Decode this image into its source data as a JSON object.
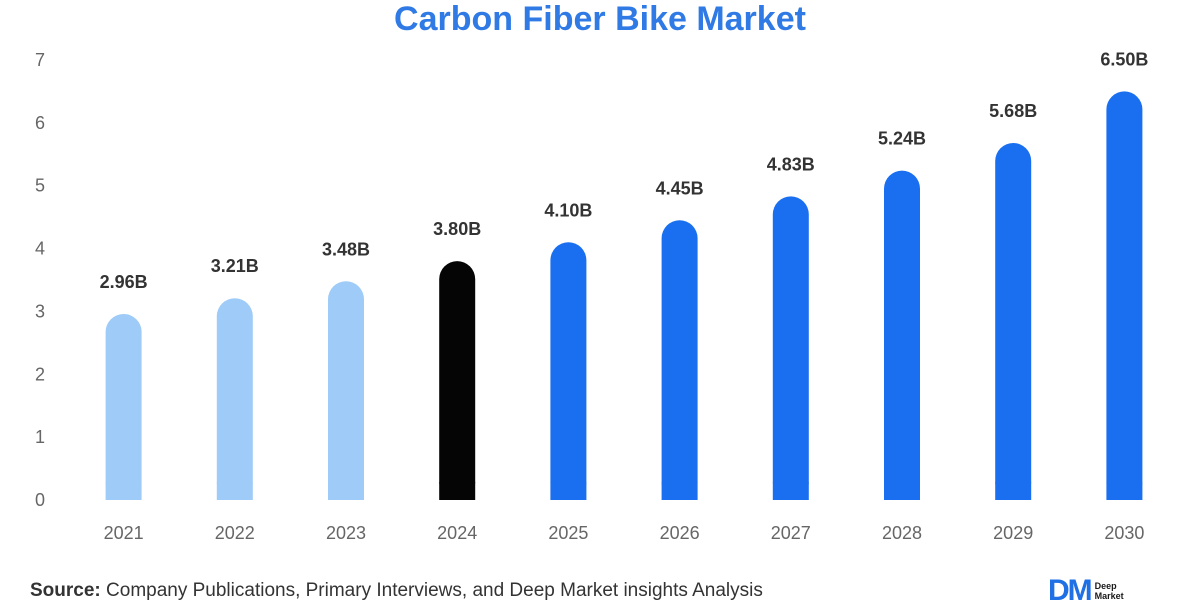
{
  "chart_data": {
    "type": "bar",
    "title": "Carbon Fiber Bike Market",
    "categories": [
      "2021",
      "2022",
      "2023",
      "2024",
      "2025",
      "2026",
      "2027",
      "2028",
      "2029",
      "2030"
    ],
    "values": [
      2.96,
      3.21,
      3.48,
      3.8,
      4.1,
      4.45,
      4.83,
      5.24,
      5.68,
      6.5
    ],
    "data_labels": [
      "2.96B",
      "3.21B",
      "3.48B",
      "3.80B",
      "4.10B",
      "4.45B",
      "4.83B",
      "5.24B",
      "5.68B",
      "6.50B"
    ],
    "bar_colors": [
      "#9ecbf7",
      "#9ecbf7",
      "#9ecbf7",
      "#050505",
      "#1a6ff0",
      "#1a6ff0",
      "#1a6ff0",
      "#1a6ff0",
      "#1a6ff0",
      "#1a6ff0"
    ],
    "y_ticks": [
      "0",
      "1",
      "2",
      "3",
      "4",
      "5",
      "6",
      "7"
    ],
    "xlabel": "",
    "ylabel": "",
    "ylim": [
      0,
      7
    ],
    "grid": false
  },
  "source": {
    "label": "Source:",
    "text": "Company Publications, Primary Interviews, and Deep Market insights Analysis"
  },
  "logo": {
    "mark": "DM",
    "line1": "Deep",
    "line2": "Market"
  }
}
